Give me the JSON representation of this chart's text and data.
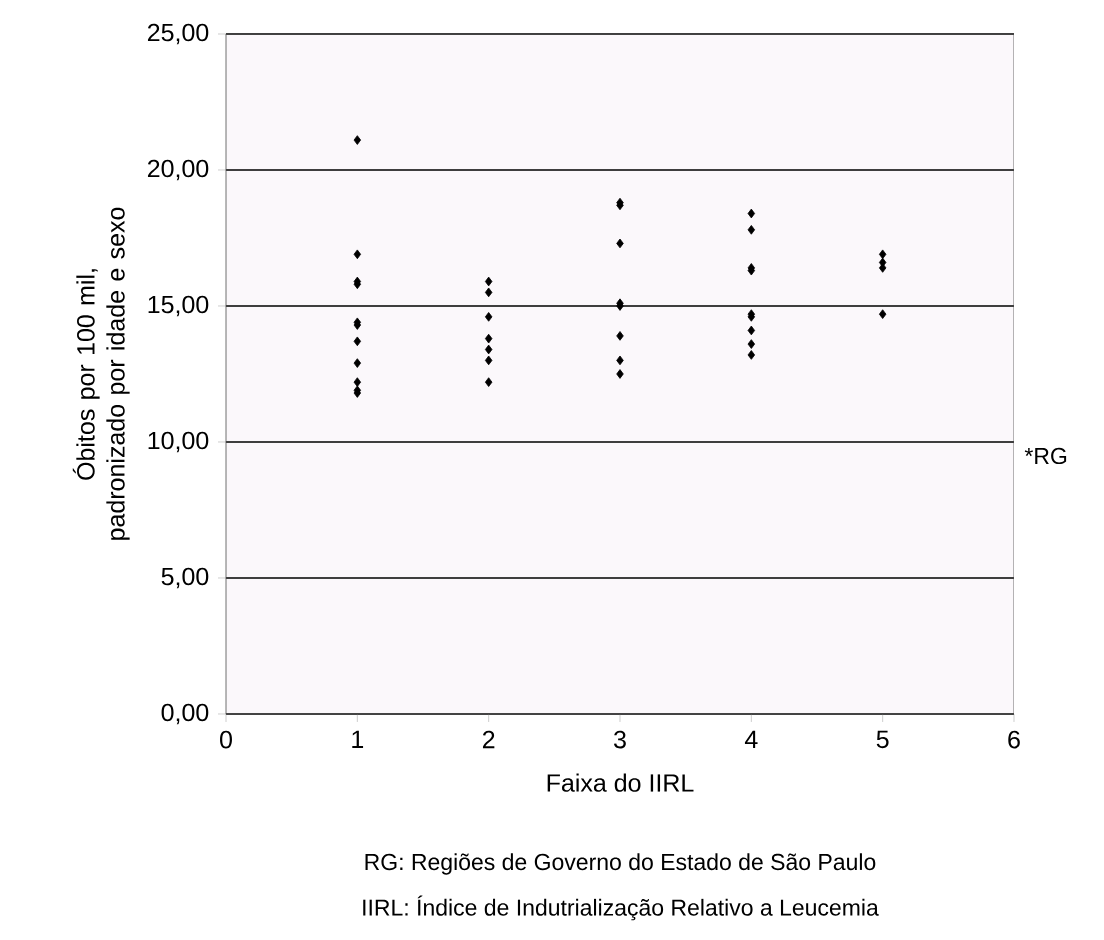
{
  "chart_data": {
    "type": "scatter",
    "xlabel": "Faixa do IIRL",
    "ylabel": "Óbitos por 100 mil, padronizado por idade e sexo",
    "x": [
      1,
      1,
      1,
      1,
      1,
      1,
      1,
      1,
      1,
      1,
      1,
      2,
      2,
      2,
      2,
      2,
      2,
      2,
      3,
      3,
      3,
      3,
      3,
      3,
      3,
      3,
      4,
      4,
      4,
      4,
      4,
      4,
      4,
      4,
      4,
      5,
      5,
      5,
      5
    ],
    "series": [
      {
        "color": "#000000",
        "values": [
          21.1,
          16.9,
          15.9,
          15.8,
          14.4,
          14.3,
          13.7,
          12.9,
          12.2,
          11.9,
          11.8,
          15.9,
          15.5,
          14.6,
          13.8,
          13.4,
          13.0,
          12.2,
          18.8,
          18.7,
          17.3,
          15.1,
          15.0,
          13.9,
          13.0,
          12.5,
          18.4,
          17.8,
          16.4,
          16.3,
          14.7,
          14.6,
          14.1,
          13.6,
          13.2,
          16.9,
          16.6,
          16.4,
          14.7
        ]
      }
    ],
    "marker": "diamond",
    "xlim": [
      0,
      6
    ],
    "xticks": [
      0,
      1,
      2,
      3,
      4,
      5,
      6
    ],
    "ylim": [
      0,
      25
    ],
    "yticks": [
      {
        "value": 0,
        "label": "0,00"
      },
      {
        "value": 5,
        "label": "5,00"
      },
      {
        "value": 10,
        "label": "10,00"
      },
      {
        "value": 15,
        "label": "15,00"
      },
      {
        "value": 20,
        "label": "20,00"
      },
      {
        "value": 25,
        "label": "25,00"
      }
    ],
    "grid": "y",
    "annotations": [
      "*RG",
      "RG: Regiões de Governo do Estado de São Paulo",
      "IIRL: Índice de Indutrialização Relativo a Leucemia"
    ]
  }
}
